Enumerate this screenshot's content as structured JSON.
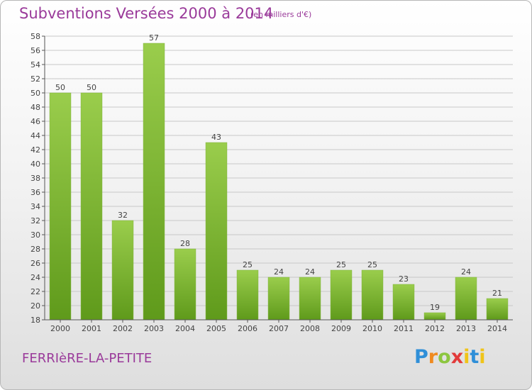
{
  "header": {
    "title": "Subventions Versées 2000 à 2014",
    "unit": "(en milliers d'€)"
  },
  "footer": {
    "commune": "FERRIèRE-LA-PETITE",
    "logo_text": "Proxiti"
  },
  "colors": {
    "title": "#9a3a9a",
    "bar_light": "#9acd4c",
    "bar_dark": "#5f9a1b",
    "grid": "#c8c8c8",
    "axis": "#555555"
  },
  "chart_data": {
    "type": "bar",
    "title": "Subventions Versées 2000 à 2014",
    "xlabel": "",
    "ylabel": "",
    "categories": [
      "2000",
      "2001",
      "2002",
      "2003",
      "2004",
      "2005",
      "2006",
      "2007",
      "2008",
      "2009",
      "2010",
      "2011",
      "2012",
      "2013",
      "2014"
    ],
    "values": [
      50,
      50,
      32,
      57,
      28,
      43,
      25,
      24,
      24,
      25,
      25,
      23,
      19,
      24,
      21
    ],
    "ylim": [
      18,
      58
    ],
    "ytick_step": 2,
    "grid": true,
    "legend": "none"
  }
}
